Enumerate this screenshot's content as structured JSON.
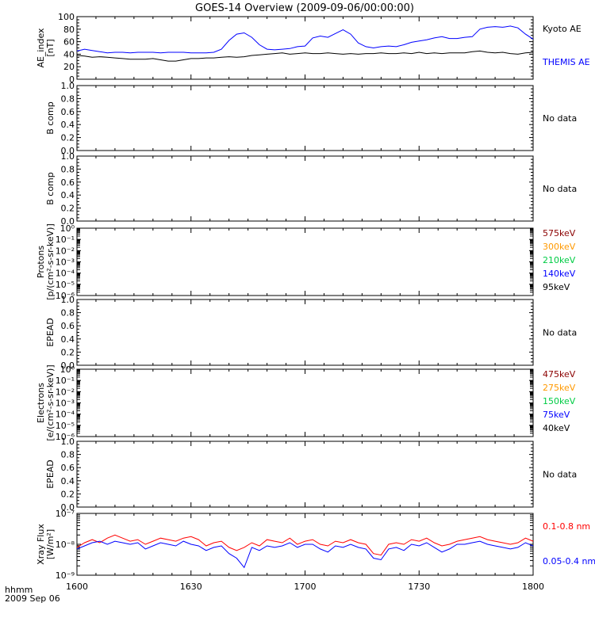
{
  "title": "GOES-14 Overview (2009-09-06/00:00:00)",
  "x_axis": {
    "ticks": [
      "1600",
      "1630",
      "1700",
      "1730",
      "1800"
    ],
    "corner_label_1": "hhmm",
    "corner_label_2": "2009 Sep 06",
    "range_min": [
      960,
      1080
    ]
  },
  "chart_data": [
    {
      "id": "ae",
      "type": "line",
      "ylabel": [
        "AE_index",
        "[nT]"
      ],
      "ylim": [
        0,
        100
      ],
      "yticks": [
        "0",
        "20",
        "40",
        "60",
        "80",
        "100"
      ],
      "x_minutes": [
        960,
        962,
        964,
        966,
        968,
        970,
        972,
        974,
        976,
        978,
        980,
        982,
        984,
        986,
        988,
        990,
        992,
        994,
        996,
        998,
        1000,
        1002,
        1004,
        1006,
        1008,
        1010,
        1012,
        1014,
        1016,
        1018,
        1020,
        1022,
        1024,
        1026,
        1028,
        1030,
        1032,
        1034,
        1036,
        1038,
        1040,
        1042,
        1044,
        1046,
        1048,
        1050,
        1052,
        1054,
        1056,
        1058,
        1060,
        1062,
        1064,
        1066,
        1068,
        1070,
        1072,
        1074,
        1076,
        1078,
        1080
      ],
      "series": [
        {
          "name": "Kyoto AE",
          "color": "#000000",
          "values": [
            38,
            37,
            35,
            36,
            35,
            34,
            33,
            32,
            32,
            32,
            33,
            31,
            29,
            29,
            31,
            33,
            33,
            34,
            34,
            35,
            36,
            35,
            36,
            38,
            39,
            40,
            41,
            42,
            40,
            41,
            42,
            41,
            41,
            42,
            41,
            40,
            41,
            40,
            41,
            41,
            42,
            41,
            41,
            42,
            41,
            43,
            41,
            42,
            41,
            42,
            42,
            42,
            44,
            45,
            43,
            42,
            43,
            41,
            40,
            42,
            43
          ]
        },
        {
          "name": "THEMIS AE",
          "color": "#0000ff",
          "values": [
            45,
            48,
            46,
            44,
            42,
            43,
            43,
            42,
            43,
            43,
            43,
            42,
            43,
            43,
            43,
            42,
            42,
            42,
            43,
            48,
            62,
            72,
            74,
            67,
            55,
            48,
            47,
            48,
            49,
            52,
            53,
            66,
            69,
            67,
            73,
            79,
            72,
            58,
            52,
            50,
            52,
            53,
            52,
            55,
            59,
            61,
            63,
            66,
            68,
            65,
            65,
            67,
            68,
            80,
            83,
            84,
            83,
            85,
            82,
            72,
            64
          ]
        }
      ]
    },
    {
      "id": "b1",
      "type": "line",
      "ylabel": [
        "B comp"
      ],
      "ylim": [
        0,
        1
      ],
      "yticks": [
        "0.0",
        "0.2",
        "0.4",
        "0.6",
        "0.8",
        "1.0"
      ],
      "right_label": "No data"
    },
    {
      "id": "b2",
      "type": "line",
      "ylabel": [
        "B comp"
      ],
      "ylim": [
        0,
        1
      ],
      "yticks": [
        "0.0",
        "0.2",
        "0.4",
        "0.6",
        "0.8",
        "1.0"
      ],
      "right_label": "No data"
    },
    {
      "id": "protons",
      "type": "line",
      "log": true,
      "ylabel": [
        "Protons",
        "[p/(cm²-s-sr-keV)]"
      ],
      "ylim_exp": [
        -6,
        0
      ],
      "yticks": [
        "10⁻⁶",
        "10⁻⁵",
        "10⁻⁴",
        "10⁻³",
        "10⁻²",
        "10⁻¹",
        "10⁰"
      ],
      "legend": [
        {
          "name": "575keV",
          "color": "#8b0000"
        },
        {
          "name": "300keV",
          "color": "#ff9900"
        },
        {
          "name": "210keV",
          "color": "#00cc44"
        },
        {
          "name": "140keV",
          "color": "#0000ff"
        },
        {
          "name": "95keV",
          "color": "#000000"
        }
      ]
    },
    {
      "id": "epead1",
      "type": "line",
      "ylabel": [
        "EPEAD"
      ],
      "ylim": [
        0,
        1
      ],
      "yticks": [
        "0.0",
        "0.2",
        "0.4",
        "0.6",
        "0.8",
        "1.0"
      ],
      "right_label": "No data"
    },
    {
      "id": "electrons",
      "type": "line",
      "log": true,
      "ylabel": [
        "Electrons",
        "[e/(cm²-s-sr-keV)]"
      ],
      "ylim_exp": [
        -6,
        0
      ],
      "yticks": [
        "10⁻⁶",
        "10⁻⁵",
        "10⁻⁴",
        "10⁻³",
        "10⁻²",
        "10⁻¹",
        "10⁰"
      ],
      "legend": [
        {
          "name": "475keV",
          "color": "#8b0000"
        },
        {
          "name": "275keV",
          "color": "#ff9900"
        },
        {
          "name": "150keV",
          "color": "#00cc44"
        },
        {
          "name": "75keV",
          "color": "#0000ff"
        },
        {
          "name": "40keV",
          "color": "#000000"
        }
      ]
    },
    {
      "id": "epead2",
      "type": "line",
      "ylabel": [
        "EPEAD"
      ],
      "ylim": [
        0,
        1
      ],
      "yticks": [
        "0.0",
        "0.2",
        "0.4",
        "0.6",
        "0.8",
        "1.0"
      ],
      "right_label": "No data"
    },
    {
      "id": "xray",
      "type": "line",
      "log": true,
      "ylabel": [
        "Xray Flux",
        "[W/m²]"
      ],
      "ylim_exp": [
        -9,
        -7
      ],
      "yticks": [
        "10⁻⁹",
        "10⁻⁸",
        "10⁻⁷"
      ],
      "x_minutes": [
        960,
        962,
        964,
        966,
        968,
        970,
        972,
        974,
        976,
        978,
        980,
        982,
        984,
        986,
        988,
        990,
        992,
        994,
        996,
        998,
        1000,
        1002,
        1004,
        1006,
        1008,
        1010,
        1012,
        1014,
        1016,
        1018,
        1020,
        1022,
        1024,
        1026,
        1028,
        1030,
        1032,
        1034,
        1036,
        1038,
        1040,
        1042,
        1044,
        1046,
        1048,
        1050,
        1052,
        1054,
        1056,
        1058,
        1060,
        1062,
        1064,
        1066,
        1068,
        1070,
        1072,
        1074,
        1076,
        1078,
        1080
      ],
      "series": [
        {
          "name": "0.1-0.8 nm",
          "color": "#ff0000",
          "log_values": [
            -8.1,
            -7.95,
            -7.85,
            -7.95,
            -7.8,
            -7.7,
            -7.8,
            -7.9,
            -7.85,
            -8.0,
            -7.9,
            -7.8,
            -7.85,
            -7.9,
            -7.8,
            -7.75,
            -7.85,
            -8.05,
            -7.95,
            -7.9,
            -8.1,
            -8.2,
            -8.1,
            -7.95,
            -8.05,
            -7.85,
            -7.9,
            -7.95,
            -7.8,
            -8.0,
            -7.9,
            -7.85,
            -8.0,
            -8.05,
            -7.9,
            -7.95,
            -7.85,
            -7.95,
            -8.0,
            -8.3,
            -8.35,
            -8.0,
            -7.95,
            -8.0,
            -7.85,
            -7.9,
            -7.8,
            -7.95,
            -8.05,
            -8.0,
            -7.9,
            -7.85,
            -7.8,
            -7.75,
            -7.85,
            -7.9,
            -7.95,
            -8.0,
            -7.95,
            -7.8,
            -7.9
          ]
        },
        {
          "name": "0.05-0.4 nm",
          "color": "#0000ff",
          "log_values": [
            -8.15,
            -8.05,
            -7.95,
            -7.9,
            -8.0,
            -7.9,
            -7.95,
            -8.0,
            -7.95,
            -8.15,
            -8.05,
            -7.95,
            -8.0,
            -8.05,
            -7.9,
            -8.0,
            -8.05,
            -8.2,
            -8.1,
            -8.05,
            -8.3,
            -8.45,
            -8.75,
            -8.1,
            -8.2,
            -8.05,
            -8.1,
            -8.05,
            -7.95,
            -8.1,
            -8.0,
            -8.0,
            -8.15,
            -8.25,
            -8.05,
            -8.1,
            -8.0,
            -8.1,
            -8.15,
            -8.45,
            -8.5,
            -8.15,
            -8.1,
            -8.2,
            -8.0,
            -8.05,
            -7.95,
            -8.1,
            -8.25,
            -8.15,
            -8.0,
            -8.0,
            -7.95,
            -7.9,
            -8.0,
            -8.05,
            -8.1,
            -8.15,
            -8.1,
            -7.95,
            -8.05
          ]
        }
      ]
    }
  ]
}
